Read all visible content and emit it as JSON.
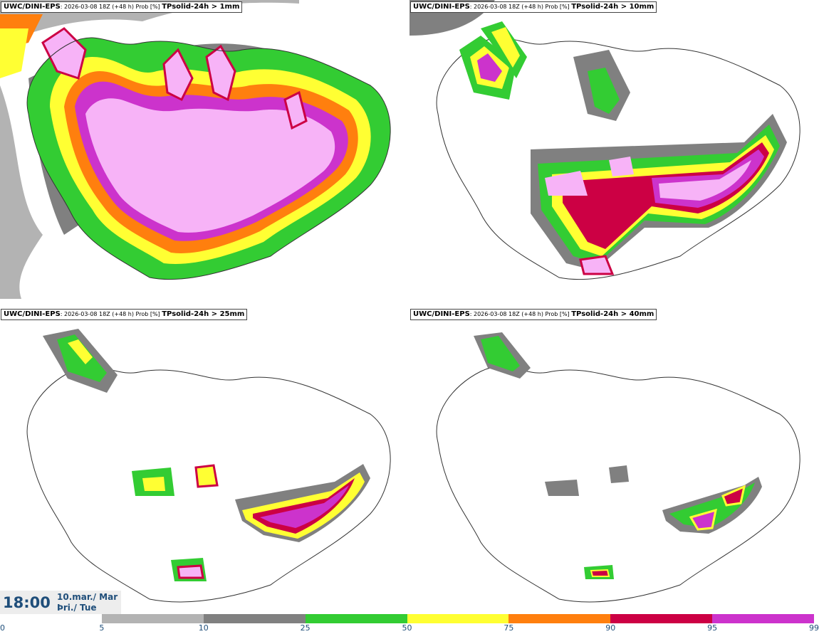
{
  "panels": [
    {
      "model": "UWC/DINI-EPS",
      "run": ": 2026-03-08 18Z (+48 h) Prob [%] ",
      "field": "TPsolid-24h > 1mm"
    },
    {
      "model": "UWC/DINI-EPS",
      "run": ": 2026-03-08 18Z (+48 h) Prob [%] ",
      "field": "TPsolid-24h > 10mm"
    },
    {
      "model": "UWC/DINI-EPS",
      "run": ": 2026-03-08 18Z (+48 h) Prob [%] ",
      "field": "TPsolid-24h > 25mm"
    },
    {
      "model": "UWC/DINI-EPS",
      "run": ": 2026-03-08 18Z (+48 h) Prob [%] ",
      "field": "TPsolid-24h > 40mm"
    }
  ],
  "valid": {
    "time": "18:00",
    "date_line1": "10.mar./ Mar",
    "date_line2": "Þri./ Tue"
  },
  "legend": {
    "ticks": [
      "0",
      "5",
      "10",
      "25",
      "50",
      "75",
      "90",
      "95",
      "99"
    ],
    "colors": [
      "#ffffff",
      "#b3b3b3",
      "#808080",
      "#33cc33",
      "#ffff33",
      "#ff7f0e",
      "#cc0044",
      "#cc33cc",
      "#f7b3f7"
    ]
  }
}
